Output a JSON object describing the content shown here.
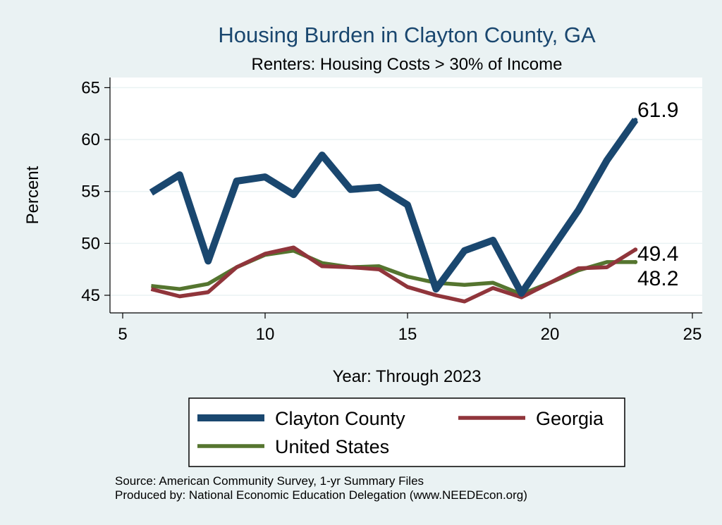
{
  "chart_data": {
    "type": "line",
    "title": "Housing Burden in Clayton County, GA",
    "subtitle": "Renters: Housing Costs > 30% of Income",
    "xlabel": "Year: Through 2023",
    "ylabel": "Percent",
    "xlim": [
      5,
      25
    ],
    "ylim": [
      44,
      66
    ],
    "xticks": [
      5,
      10,
      15,
      20,
      25
    ],
    "yticks": [
      45,
      50,
      55,
      60,
      65
    ],
    "grid": true,
    "x": [
      6,
      7,
      8,
      9,
      10,
      11,
      12,
      13,
      14,
      15,
      16,
      17,
      18,
      19,
      20,
      21,
      22,
      23
    ],
    "series": [
      {
        "name": "Clayton County",
        "color": "#1a476f",
        "values": [
          54.9,
          56.6,
          48.3,
          56.0,
          56.4,
          54.7,
          58.5,
          55.2,
          55.4,
          53.7,
          45.6,
          49.3,
          50.3,
          45.2,
          49.2,
          53.2,
          58.0,
          61.9
        ],
        "end_label": "61.9"
      },
      {
        "name": "Georgia",
        "color": "#90353b",
        "values": [
          45.6,
          44.9,
          45.3,
          47.7,
          49.0,
          49.6,
          47.8,
          47.7,
          47.5,
          45.8,
          45.0,
          44.4,
          45.7,
          44.8,
          46.2,
          47.6,
          47.7,
          49.4
        ],
        "end_label": "49.4"
      },
      {
        "name": "United States",
        "color": "#55752f",
        "values": [
          45.9,
          45.6,
          46.1,
          47.7,
          48.9,
          49.3,
          48.1,
          47.7,
          47.8,
          46.8,
          46.2,
          46.0,
          46.2,
          45.1,
          46.2,
          47.4,
          48.2,
          48.2
        ],
        "end_label": "48.2"
      }
    ],
    "legend": {
      "position": "bottom",
      "entries": [
        "Clayton County",
        "Georgia",
        "United States"
      ]
    },
    "notes": [
      "Source: American Community Survey, 1-yr Summary Files",
      "Produced by: National Economic Education Delegation (www.NEEDEcon.org)"
    ]
  }
}
